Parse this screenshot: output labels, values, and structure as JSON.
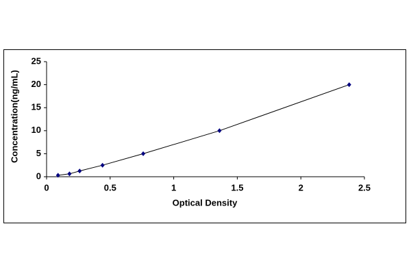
{
  "chart_data": {
    "type": "scatter",
    "xlabel": "Optical Density",
    "ylabel": "Concentration(ng/mL)",
    "x": [
      0.09,
      0.18,
      0.26,
      0.44,
      0.76,
      1.36,
      2.38
    ],
    "values": [
      0.3125,
      0.625,
      1.25,
      2.5,
      5,
      10,
      20
    ],
    "color": "#000080",
    "line": true,
    "line_color": "#000000",
    "xlim": [
      0,
      2.5
    ],
    "xticks": [
      0,
      0.5,
      1,
      1.5,
      2,
      2.5
    ],
    "ylim": [
      0,
      25
    ],
    "yticks": [
      0,
      5,
      10,
      15,
      20,
      25
    ]
  }
}
